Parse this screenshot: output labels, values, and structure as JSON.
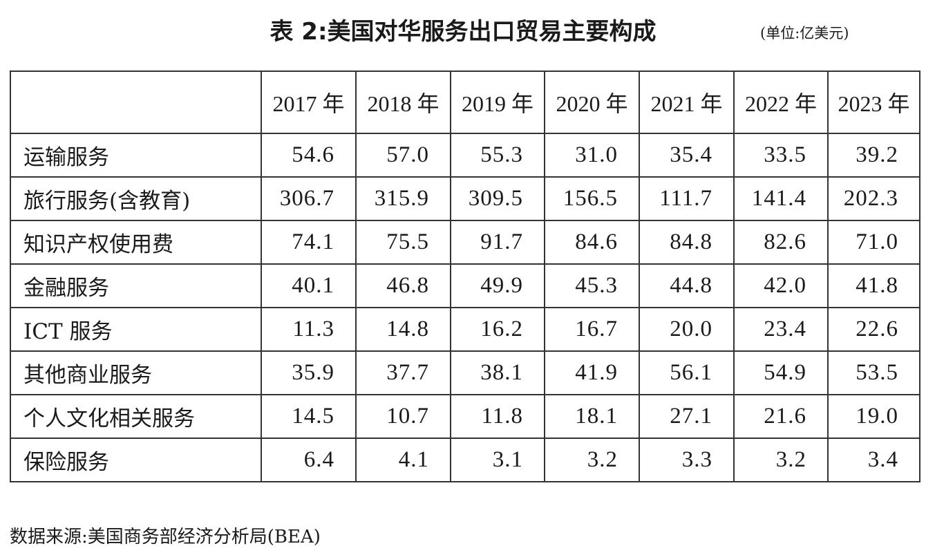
{
  "title": "表 2:美国对华服务出口贸易主要构成",
  "unit": "(单位:亿美元)",
  "table": {
    "columns": [
      "2017 年",
      "2018 年",
      "2019 年",
      "2020 年",
      "2021 年",
      "2022 年",
      "2023 年"
    ],
    "rows": [
      {
        "label": "运输服务",
        "values": [
          "54.6",
          "57.0",
          "55.3",
          "31.0",
          "35.4",
          "33.5",
          "39.2"
        ]
      },
      {
        "label": "旅行服务(含教育)",
        "values": [
          "306.7",
          "315.9",
          "309.5",
          "156.5",
          "111.7",
          "141.4",
          "202.3"
        ]
      },
      {
        "label": "知识产权使用费",
        "values": [
          "74.1",
          "75.5",
          "91.7",
          "84.6",
          "84.8",
          "82.6",
          "71.0"
        ]
      },
      {
        "label": "金融服务",
        "values": [
          "40.1",
          "46.8",
          "49.9",
          "45.3",
          "44.8",
          "42.0",
          "41.8"
        ]
      },
      {
        "label": "ICT 服务",
        "values": [
          "11.3",
          "14.8",
          "16.2",
          "16.7",
          "20.0",
          "23.4",
          "22.6"
        ]
      },
      {
        "label": "其他商业服务",
        "values": [
          "35.9",
          "37.7",
          "38.1",
          "41.9",
          "56.1",
          "54.9",
          "53.5"
        ]
      },
      {
        "label": "个人文化相关服务",
        "values": [
          "14.5",
          "10.7",
          "11.8",
          "18.1",
          "27.1",
          "21.6",
          "19.0"
        ]
      },
      {
        "label": "保险服务",
        "values": [
          "6.4",
          "4.1",
          "3.1",
          "3.2",
          "3.3",
          "3.2",
          "3.4"
        ]
      }
    ]
  },
  "source": "数据来源:美国商务部经济分析局(BEA)"
}
